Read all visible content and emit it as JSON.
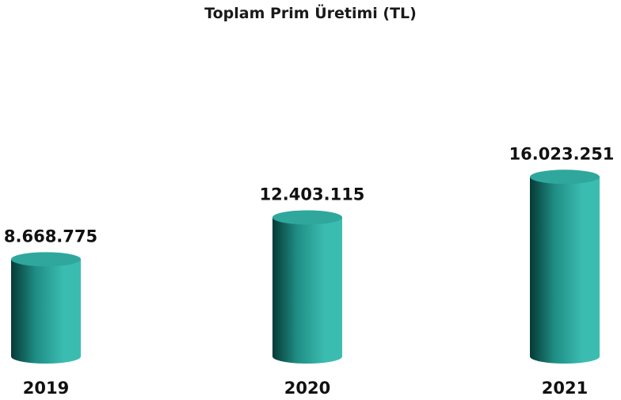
{
  "chart_data": {
    "type": "bar",
    "title": "Toplam Prim Üretimi (TL)",
    "categories": [
      "2019",
      "2020",
      "2021"
    ],
    "values": [
      8668775,
      12403115,
      16023251
    ],
    "value_labels": [
      "8.668.775",
      "12.403.115",
      "16.023.251"
    ],
    "xlabel": "",
    "ylabel": "",
    "grid": false,
    "colors": {
      "bar_dark": "#063a36",
      "bar_mid": "#1f8d84",
      "bar_light": "#3bbcb1",
      "bar_top": "#2fa79c"
    }
  }
}
